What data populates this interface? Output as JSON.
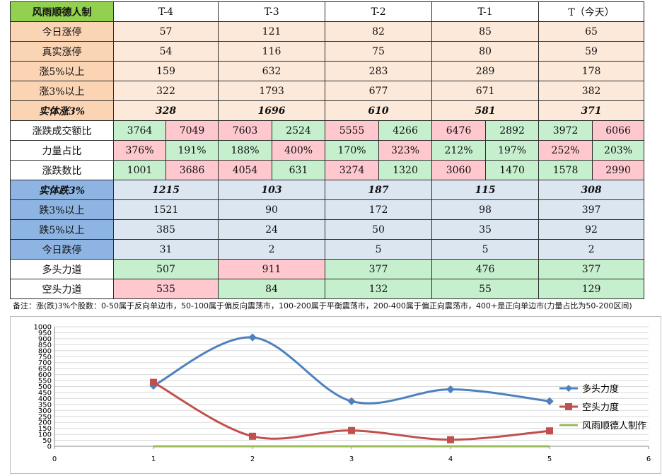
{
  "table": {
    "corner": "风雨顺德人制",
    "columns": [
      "T-4",
      "T-3",
      "T-2",
      "T-1",
      "T（今天）"
    ],
    "top_rows": [
      {
        "label": "今日涨停",
        "values": [
          "57",
          "121",
          "82",
          "85",
          "65"
        ]
      },
      {
        "label": "真实涨停",
        "values": [
          "54",
          "116",
          "75",
          "80",
          "59"
        ]
      },
      {
        "label": "涨5%以上",
        "values": [
          "159",
          "632",
          "283",
          "289",
          "178"
        ]
      },
      {
        "label": "涨3%以上",
        "values": [
          "322",
          "1793",
          "677",
          "671",
          "382"
        ]
      }
    ],
    "solid_up": {
      "label": "实体涨3%",
      "values": [
        "328",
        "1696",
        "610",
        "581",
        "371"
      ]
    },
    "pair_rows": [
      {
        "label": "涨跌成交额比",
        "values": [
          [
            "3764",
            "7049"
          ],
          [
            "7603",
            "2524"
          ],
          [
            "5555",
            "4266"
          ],
          [
            "6476",
            "2892"
          ],
          [
            "3972",
            "6066"
          ]
        ],
        "colors": [
          [
            "green",
            "pink"
          ],
          [
            "pink",
            "green"
          ],
          [
            "pink",
            "green"
          ],
          [
            "pink",
            "green"
          ],
          [
            "green",
            "pink"
          ]
        ]
      },
      {
        "label": "力量占比",
        "values": [
          [
            "376%",
            "191%"
          ],
          [
            "188%",
            "400%"
          ],
          [
            "170%",
            "323%"
          ],
          [
            "212%",
            "197%"
          ],
          [
            "252%",
            "203%"
          ]
        ],
        "colors": [
          [
            "pink",
            "green"
          ],
          [
            "green",
            "pink"
          ],
          [
            "green",
            "pink"
          ],
          [
            "green",
            "green"
          ],
          [
            "pink",
            "green"
          ]
        ]
      },
      {
        "label": "涨跌数比",
        "values": [
          [
            "1001",
            "3686"
          ],
          [
            "4054",
            "631"
          ],
          [
            "3274",
            "1320"
          ],
          [
            "3060",
            "1470"
          ],
          [
            "1578",
            "2990"
          ]
        ],
        "colors": [
          [
            "green",
            "pink"
          ],
          [
            "pink",
            "green"
          ],
          [
            "pink",
            "green"
          ],
          [
            "pink",
            "green"
          ],
          [
            "green",
            "pink"
          ]
        ]
      }
    ],
    "solid_down": {
      "label": "实体跌3%",
      "values": [
        "1215",
        "103",
        "187",
        "115",
        "308"
      ]
    },
    "down_rows": [
      {
        "label": "跌3%以上",
        "values": [
          "1521",
          "90",
          "172",
          "98",
          "397"
        ]
      },
      {
        "label": "跌5%以上",
        "values": [
          "385",
          "24",
          "50",
          "35",
          "92"
        ]
      },
      {
        "label": "今日跌停",
        "values": [
          "31",
          "2",
          "5",
          "5",
          "2"
        ]
      }
    ],
    "power_rows": [
      {
        "label": "多头力道",
        "values": [
          "507",
          "911",
          "377",
          "476",
          "377"
        ],
        "colors": [
          "green",
          "pink",
          "green",
          "green",
          "green"
        ]
      },
      {
        "label": "空头力道",
        "values": [
          "535",
          "84",
          "132",
          "55",
          "129"
        ],
        "colors": [
          "pink",
          "green",
          "green",
          "green",
          "green"
        ]
      }
    ]
  },
  "note": "备注：涨(跌)3%个股数：0-50属于反向单边市，50-100属于偏反向震荡市，100-200属于平衡震荡市，200-400属于偏正向震荡市，400+是正向单边市(力量占比为50-200区间)",
  "colors": {
    "green_cell": "#c6efce",
    "pink_cell": "#ffc7ce",
    "bull": "#4f81bd",
    "bear": "#c0504d",
    "maker": "#9bbb59"
  },
  "chart_data": {
    "type": "scatter",
    "smooth_lines": true,
    "xlim": [
      0,
      6
    ],
    "ylim": [
      0,
      1000
    ],
    "x_ticks": [
      0,
      1,
      2,
      3,
      4,
      5,
      6
    ],
    "y_ticks": [
      0,
      50,
      100,
      150,
      200,
      250,
      300,
      350,
      400,
      450,
      500,
      550,
      600,
      650,
      700,
      750,
      800,
      850,
      900,
      950,
      1000
    ],
    "grid": "horizontal",
    "legend_position": "right",
    "series": [
      {
        "name": "多头力度",
        "x": [
          1,
          2,
          3,
          4,
          5
        ],
        "y": [
          507,
          911,
          377,
          476,
          377
        ],
        "color": "#4f81bd",
        "marker": "diamond"
      },
      {
        "name": "空头力度",
        "x": [
          1,
          2,
          3,
          4,
          5
        ],
        "y": [
          535,
          84,
          132,
          55,
          129
        ],
        "color": "#c0504d",
        "marker": "square"
      },
      {
        "name": "风雨顺德人制作",
        "x": [
          1,
          2,
          3,
          4,
          5
        ],
        "y": [
          0,
          0,
          0,
          0,
          0
        ],
        "color": "#9bbb59",
        "marker": "none"
      }
    ]
  }
}
